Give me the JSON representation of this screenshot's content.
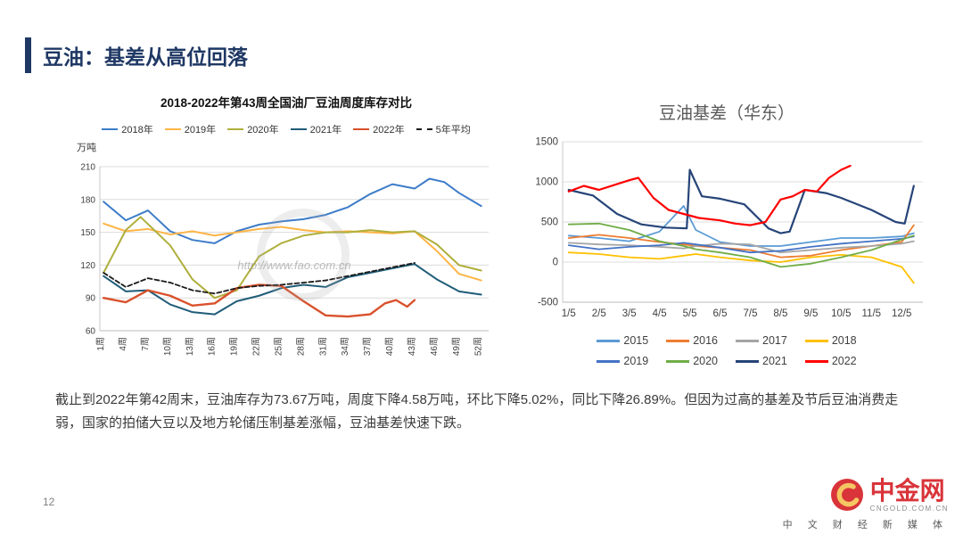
{
  "theme": {
    "accent": "#1F3864",
    "logo_red": "#D8343A",
    "logo_gold": "#F5C662"
  },
  "slide": {
    "title": "豆油：基差从高位回落",
    "page_number": "12",
    "body_text": "截止到2022年第42周末，豆油库存为73.67万吨，周度下降4.58万吨，环比下降5.02%，同比下降26.89%。但因为过高的基差及节后豆油消费走弱，国家的拍储大豆以及地方轮储压制基差涨幅，豆油基差快速下跌。"
  },
  "logo": {
    "brand": "中金网",
    "domain": "CNGOLD.COM.CN",
    "tagline": "中 文 财 经 新 媒 体"
  },
  "chart_data": [
    {
      "type": "line",
      "title": "2018-2022年第43周全国油厂豆油周度库存对比",
      "ylabel": "万吨",
      "watermark": "http://www.fao.com.cn",
      "xlim": [
        0.5,
        53
      ],
      "ylim": [
        60,
        210
      ],
      "yticks": [
        60,
        90,
        120,
        150,
        180,
        210
      ],
      "xtick_values": [
        1,
        4,
        7,
        10,
        13,
        16,
        19,
        22,
        25,
        28,
        31,
        34,
        37,
        40,
        43,
        46,
        49,
        52
      ],
      "xtick_labels": [
        "1周",
        "4周",
        "7周",
        "10周",
        "13周",
        "16周",
        "19周",
        "22周",
        "25周",
        "28周",
        "31周",
        "34周",
        "37周",
        "40周",
        "43周",
        "46周",
        "49周",
        "52周"
      ],
      "grid": true,
      "legend_position": "top",
      "series": [
        {
          "name": "2018年",
          "color": "#3D7CC9",
          "width": 2,
          "x": [
            1,
            4,
            7,
            10,
            13,
            16,
            19,
            22,
            25,
            28,
            31,
            34,
            37,
            40,
            43,
            45,
            47,
            49,
            52
          ],
          "values": [
            178,
            161,
            170,
            151,
            143,
            140,
            151,
            157,
            160,
            162,
            166,
            173,
            185,
            194,
            190,
            199,
            196,
            186,
            174
          ]
        },
        {
          "name": "2019年",
          "color": "#FFB547",
          "width": 2,
          "x": [
            1,
            4,
            7,
            10,
            13,
            16,
            19,
            22,
            25,
            28,
            31,
            34,
            37,
            40,
            43,
            46,
            49,
            52
          ],
          "values": [
            158,
            151,
            153,
            148,
            151,
            147,
            150,
            153,
            155,
            152,
            150,
            151,
            150,
            149,
            151,
            133,
            112,
            106
          ]
        },
        {
          "name": "2020年",
          "color": "#AFAF3C",
          "width": 2,
          "x": [
            1,
            4,
            6,
            10,
            13,
            16,
            19,
            22,
            25,
            28,
            31,
            34,
            37,
            40,
            43,
            46,
            49,
            52
          ],
          "values": [
            113,
            152,
            164,
            138,
            107,
            90,
            97,
            128,
            140,
            147,
            150,
            150,
            152,
            150,
            151,
            139,
            120,
            115
          ]
        },
        {
          "name": "2021年",
          "color": "#1F5C78",
          "width": 2,
          "x": [
            1,
            4,
            7,
            10,
            13,
            16,
            19,
            22,
            25,
            28,
            31,
            34,
            37,
            40,
            43,
            46,
            49,
            52
          ],
          "values": [
            110,
            96,
            97,
            84,
            77,
            75,
            87,
            92,
            99,
            102,
            100,
            109,
            113,
            117,
            121,
            107,
            96,
            93
          ]
        },
        {
          "name": "2022年",
          "color": "#D9512C",
          "width": 2.4,
          "x": [
            1,
            4,
            7,
            10,
            13,
            16,
            19,
            22,
            25,
            28,
            31,
            34,
            37,
            39,
            40.5,
            42,
            43
          ],
          "values": [
            90,
            86,
            97,
            92,
            83,
            85,
            99,
            102,
            101,
            87,
            74,
            73,
            75,
            85,
            88,
            82,
            88
          ]
        },
        {
          "name": "5年平均",
          "color": "#1a1a1a",
          "width": 1.8,
          "dash": true,
          "x": [
            1,
            4,
            7,
            10,
            13,
            16,
            19,
            22,
            25,
            28,
            31,
            34,
            37,
            40,
            43
          ],
          "values": [
            113,
            100,
            108,
            104,
            97,
            94,
            99,
            101,
            102,
            104,
            106,
            110,
            114,
            118,
            122
          ]
        }
      ]
    },
    {
      "type": "line",
      "title": "豆油基差（华东）",
      "xlim": [
        0.8,
        12.7
      ],
      "ylim": [
        -500,
        1500
      ],
      "yticks": [
        -500,
        0,
        500,
        1000,
        1500
      ],
      "xtick_values": [
        1,
        2,
        3,
        4,
        5,
        6,
        7,
        8,
        9,
        10,
        11,
        12
      ],
      "xtick_labels": [
        "1/5",
        "2/5",
        "3/5",
        "4/5",
        "5/5",
        "6/5",
        "7/5",
        "8/5",
        "9/5",
        "10/5",
        "11/5",
        "12/5"
      ],
      "grid": true,
      "legend_position": "bottom",
      "series": [
        {
          "name": "2015",
          "color": "#5B9BD5",
          "width": 1.8,
          "x": [
            1,
            2,
            3,
            4,
            4.8,
            5.2,
            6,
            7,
            8,
            9,
            10,
            11,
            12,
            12.4
          ],
          "values": [
            330,
            300,
            260,
            380,
            700,
            400,
            250,
            200,
            200,
            250,
            300,
            300,
            320,
            360
          ]
        },
        {
          "name": "2016",
          "color": "#ED7D31",
          "width": 1.8,
          "x": [
            1,
            2,
            3,
            4,
            4.8,
            5.2,
            6,
            7,
            8,
            9,
            10,
            11,
            12,
            12.4
          ],
          "values": [
            300,
            340,
            300,
            250,
            220,
            200,
            180,
            150,
            60,
            80,
            150,
            200,
            250,
            460
          ]
        },
        {
          "name": "2017",
          "color": "#A5A5A5",
          "width": 1.8,
          "x": [
            1,
            2,
            3,
            4,
            4.8,
            5.2,
            6,
            7,
            8,
            9,
            10,
            11,
            12,
            12.4
          ],
          "values": [
            240,
            220,
            210,
            190,
            170,
            200,
            230,
            220,
            120,
            150,
            180,
            200,
            230,
            260
          ]
        },
        {
          "name": "2018",
          "color": "#FFC000",
          "width": 1.8,
          "x": [
            1,
            2,
            3,
            4,
            4.8,
            5.2,
            6,
            7,
            8,
            9,
            10,
            11,
            12,
            12.4
          ],
          "values": [
            120,
            100,
            60,
            40,
            80,
            100,
            60,
            20,
            0,
            60,
            90,
            60,
            -60,
            -260
          ]
        },
        {
          "name": "2019",
          "color": "#4472C4",
          "width": 1.8,
          "x": [
            1,
            2,
            3,
            4,
            4.8,
            5.2,
            6,
            7,
            8,
            9,
            10,
            11,
            12,
            12.4
          ],
          "values": [
            210,
            160,
            190,
            210,
            240,
            220,
            180,
            120,
            140,
            190,
            230,
            260,
            290,
            320
          ]
        },
        {
          "name": "2020",
          "color": "#70AD47",
          "width": 1.8,
          "x": [
            1,
            2,
            3,
            4,
            4.8,
            5.2,
            6,
            7,
            8,
            9,
            10,
            11,
            12,
            12.4
          ],
          "values": [
            470,
            480,
            400,
            260,
            200,
            160,
            120,
            60,
            -60,
            -20,
            60,
            150,
            280,
            330
          ]
        },
        {
          "name": "2021",
          "color": "#264478",
          "width": 2.2,
          "x": [
            1,
            1.8,
            2.6,
            3.4,
            4.2,
            4.9,
            5.0,
            5.4,
            6,
            6.8,
            7.6,
            8.0,
            8.3,
            8.8,
            9.5,
            10,
            11,
            11.8,
            12.1,
            12.4
          ],
          "values": [
            900,
            830,
            600,
            470,
            430,
            420,
            1150,
            820,
            790,
            720,
            420,
            360,
            380,
            900,
            860,
            800,
            650,
            500,
            480,
            950
          ]
        },
        {
          "name": "2022",
          "color": "#FF0000",
          "width": 2.2,
          "x": [
            1,
            1.5,
            2,
            2.5,
            3,
            3.3,
            3.8,
            4.3,
            4.8,
            5.3,
            6,
            6.5,
            7,
            7.5,
            8,
            8.4,
            8.8,
            9.2,
            9.6,
            10,
            10.3
          ],
          "values": [
            880,
            950,
            900,
            960,
            1020,
            1050,
            800,
            650,
            600,
            550,
            520,
            480,
            460,
            500,
            780,
            820,
            900,
            880,
            1050,
            1150,
            1200
          ]
        }
      ]
    }
  ]
}
